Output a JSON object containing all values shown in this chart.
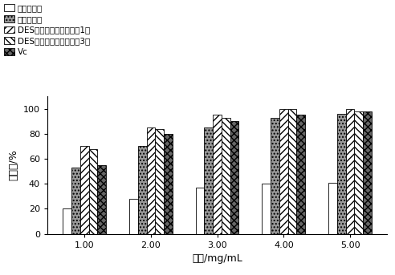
{
  "categories": [
    "1.00",
    "2.00",
    "3.00",
    "4.00",
    "5.00"
  ],
  "xlabel": "浓度/mg/mL",
  "ylabel": "清除率/%",
  "ylim": [
    0,
    110
  ],
  "yticks": [
    0,
    20,
    40,
    60,
    80,
    100
  ],
  "series": [
    {
      "name": "水提花色苷",
      "values": [
        20,
        28,
        37,
        40,
        41
      ],
      "hatch": "",
      "facecolor": "white",
      "edgecolor": "black"
    },
    {
      "name": "醇提花色苷",
      "values": [
        53,
        70,
        85,
        93,
        96
      ],
      "hatch": "....",
      "facecolor": "#999999",
      "edgecolor": "black"
    },
    {
      "name": "DES提花色苷（实施方式1）",
      "values": [
        70,
        85,
        95,
        100,
        100
      ],
      "hatch": "////",
      "facecolor": "white",
      "edgecolor": "black"
    },
    {
      "name": "DES提花色苷（实施方式3）",
      "values": [
        68,
        84,
        93,
        100,
        98
      ],
      "hatch": "\\\\\\\\",
      "facecolor": "white",
      "edgecolor": "black"
    },
    {
      "name": "Vc",
      "values": [
        55,
        80,
        90,
        95,
        98
      ],
      "hatch": "xxxx",
      "facecolor": "#666666",
      "edgecolor": "black"
    }
  ],
  "bar_width": 0.13,
  "legend_fontsize": 7.5,
  "axis_fontsize": 9,
  "tick_fontsize": 8
}
